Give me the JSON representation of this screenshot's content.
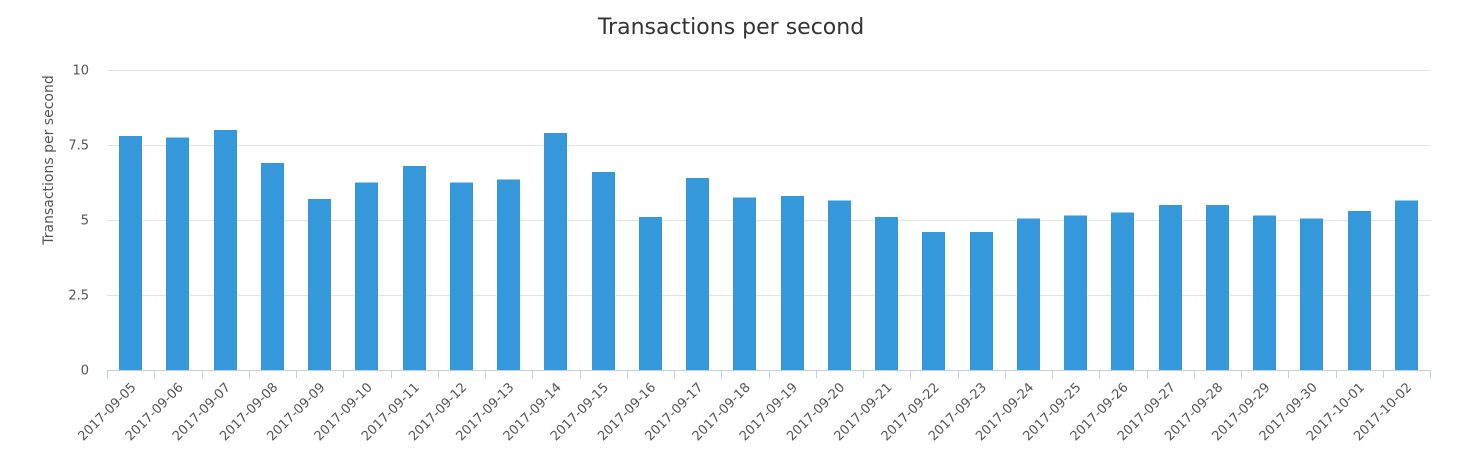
{
  "chart_data": {
    "type": "bar",
    "title": "Transactions per second",
    "xlabel": "",
    "ylabel": "Transactions per second",
    "ylim": [
      0,
      10
    ],
    "yticks": [
      0,
      2.5,
      5,
      7.5,
      10
    ],
    "ytick_labels": [
      "0",
      "2.5",
      "5",
      "7.5",
      "10"
    ],
    "grid": true,
    "legend": "none",
    "bar_color": "#3498db",
    "categories": [
      "2017-09-05",
      "2017-09-06",
      "2017-09-07",
      "2017-09-08",
      "2017-09-09",
      "2017-09-10",
      "2017-09-11",
      "2017-09-12",
      "2017-09-13",
      "2017-09-14",
      "2017-09-15",
      "2017-09-16",
      "2017-09-17",
      "2017-09-18",
      "2017-09-19",
      "2017-09-20",
      "2017-09-21",
      "2017-09-22",
      "2017-09-23",
      "2017-09-24",
      "2017-09-25",
      "2017-09-26",
      "2017-09-27",
      "2017-09-28",
      "2017-09-29",
      "2017-09-30",
      "2017-10-01",
      "2017-10-02"
    ],
    "values": [
      7.8,
      7.75,
      8.0,
      6.9,
      5.7,
      6.25,
      6.8,
      6.25,
      6.35,
      7.9,
      6.6,
      5.1,
      6.4,
      5.75,
      5.8,
      5.65,
      5.1,
      4.6,
      4.6,
      5.05,
      5.15,
      5.25,
      5.5,
      5.5,
      5.15,
      5.05,
      5.3,
      5.65
    ]
  }
}
